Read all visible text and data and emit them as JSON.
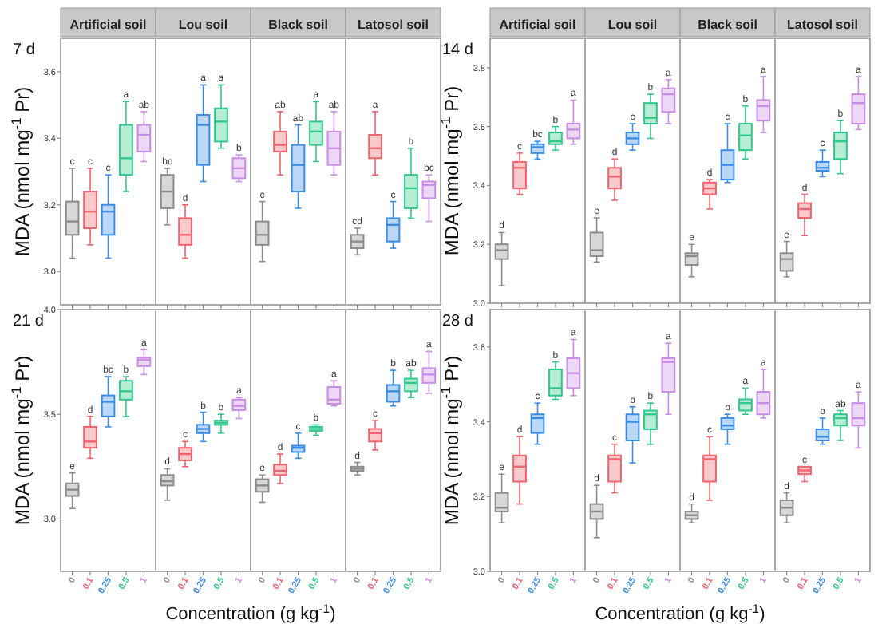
{
  "chart_data": [
    {
      "type": "box",
      "ylabel": "MDA (nmol mg$^{-1}$ Pr)",
      "categories": [
        "Artificial soil",
        "Lou soil",
        "Black soil",
        "Latosol soil"
      ],
      "ylim": [
        2.9,
        3.7
      ],
      "yticks": [
        {
          "value": 3.0,
          "label": "3.0"
        },
        {
          "value": 3.2,
          "label": "3.2"
        },
        {
          "value": 3.4,
          "label": "3.4"
        },
        {
          "value": 3.6,
          "label": "3.6"
        }
      ],
      "series": [
        {
          "color": "#8c8c8c",
          "boxes": [
            {
              "low": 3.04,
              "q1": 3.11,
              "median": 3.15,
              "q3": 3.21,
              "high": 3.31
            },
            {
              "low": 3.14,
              "q1": 3.19,
              "median": 3.24,
              "q3": 3.29,
              "high": 3.31
            },
            {
              "low": 3.03,
              "q1": 3.08,
              "median": 3.11,
              "q3": 3.15,
              "high": 3.21
            },
            {
              "low": 3.05,
              "q1": 3.07,
              "median": 3.09,
              "q3": 3.11,
              "high": 3.13
            }
          ]
        },
        {
          "color": "#f0646e",
          "boxes": [
            {
              "low": 3.08,
              "q1": 3.13,
              "median": 3.18,
              "q3": 3.24,
              "high": 3.31
            },
            {
              "low": 3.04,
              "q1": 3.08,
              "median": 3.11,
              "q3": 3.16,
              "high": 3.2
            },
            {
              "low": 3.29,
              "q1": 3.36,
              "median": 3.38,
              "q3": 3.42,
              "high": 3.48
            },
            {
              "low": 3.29,
              "q1": 3.34,
              "median": 3.37,
              "q3": 3.41,
              "high": 3.48
            }
          ]
        },
        {
          "color": "#3c8ce6",
          "boxes": [
            {
              "low": 3.04,
              "q1": 3.11,
              "median": 3.18,
              "q3": 3.2,
              "high": 3.29
            },
            {
              "low": 3.27,
              "q1": 3.32,
              "median": 3.44,
              "q3": 3.47,
              "high": 3.56
            },
            {
              "low": 3.19,
              "q1": 3.24,
              "median": 3.32,
              "q3": 3.38,
              "high": 3.44
            },
            {
              "low": 3.07,
              "q1": 3.09,
              "median": 3.14,
              "q3": 3.16,
              "high": 3.21
            }
          ]
        },
        {
          "color": "#32c88c",
          "boxes": [
            {
              "low": 3.24,
              "q1": 3.29,
              "median": 3.34,
              "q3": 3.44,
              "high": 3.51
            },
            {
              "low": 3.37,
              "q1": 3.39,
              "median": 3.45,
              "q3": 3.49,
              "high": 3.56
            },
            {
              "low": 3.33,
              "q1": 3.38,
              "median": 3.42,
              "q3": 3.45,
              "high": 3.51
            },
            {
              "low": 3.16,
              "q1": 3.19,
              "median": 3.25,
              "q3": 3.29,
              "high": 3.37
            }
          ]
        },
        {
          "color": "#c88ce6",
          "boxes": [
            {
              "low": 3.33,
              "q1": 3.36,
              "median": 3.41,
              "q3": 3.44,
              "high": 3.48
            },
            {
              "low": 3.27,
              "q1": 3.28,
              "median": 3.31,
              "q3": 3.34,
              "high": 3.35
            },
            {
              "low": 3.29,
              "q1": 3.32,
              "median": 3.37,
              "q3": 3.42,
              "high": 3.48
            },
            {
              "low": 3.15,
              "q1": 3.22,
              "median": 3.26,
              "q3": 3.27,
              "high": 3.29
            }
          ]
        }
      ],
      "annotations": [
        "7 d",
        "c",
        "c",
        "c",
        "a",
        "ab",
        "bc",
        "d",
        "a",
        "a",
        "b",
        "c",
        "ab",
        "ab",
        "a",
        "ab",
        "cd",
        "a",
        "c",
        "b",
        "bc"
      ]
    },
    {
      "type": "box",
      "ylabel": "MDA (nmol mg$^{-1}$ Pr)",
      "categories": [
        "Artificial soil",
        "Lou soil",
        "Black soil",
        "Latosol soil"
      ],
      "ylim": [
        3.0,
        3.9
      ],
      "yticks": [
        {
          "value": 3.0,
          "label": "3.0"
        },
        {
          "value": 3.2,
          "label": "3.2"
        },
        {
          "value": 3.4,
          "label": "3.4"
        },
        {
          "value": 3.6,
          "label": "3.6"
        },
        {
          "value": 3.8,
          "label": "3.8"
        }
      ],
      "series": [
        {
          "color": "#8c8c8c",
          "boxes": [
            {
              "low": 3.06,
              "q1": 3.15,
              "median": 3.18,
              "q3": 3.2,
              "high": 3.24
            },
            {
              "low": 3.14,
              "q1": 3.16,
              "median": 3.18,
              "q3": 3.24,
              "high": 3.29
            },
            {
              "low": 3.09,
              "q1": 3.13,
              "median": 3.16,
              "q3": 3.17,
              "high": 3.2
            },
            {
              "low": 3.09,
              "q1": 3.11,
              "median": 3.15,
              "q3": 3.17,
              "high": 3.21
            }
          ]
        },
        {
          "color": "#f0646e",
          "boxes": [
            {
              "low": 3.37,
              "q1": 3.39,
              "median": 3.46,
              "q3": 3.48,
              "high": 3.51
            },
            {
              "low": 3.35,
              "q1": 3.39,
              "median": 3.43,
              "q3": 3.46,
              "high": 3.49
            },
            {
              "low": 3.32,
              "q1": 3.37,
              "median": 3.39,
              "q3": 3.41,
              "high": 3.42
            },
            {
              "low": 3.23,
              "q1": 3.29,
              "median": 3.32,
              "q3": 3.34,
              "high": 3.37
            }
          ]
        },
        {
          "color": "#3c8ce6",
          "boxes": [
            {
              "low": 3.49,
              "q1": 3.51,
              "median": 3.53,
              "q3": 3.54,
              "high": 3.55
            },
            {
              "low": 3.52,
              "q1": 3.54,
              "median": 3.56,
              "q3": 3.58,
              "high": 3.61
            },
            {
              "low": 3.41,
              "q1": 3.42,
              "median": 3.47,
              "q3": 3.52,
              "high": 3.61
            },
            {
              "low": 3.43,
              "q1": 3.45,
              "median": 3.46,
              "q3": 3.48,
              "high": 3.52
            }
          ]
        },
        {
          "color": "#32c88c",
          "boxes": [
            {
              "low": 3.52,
              "q1": 3.54,
              "median": 3.55,
              "q3": 3.58,
              "high": 3.6
            },
            {
              "low": 3.56,
              "q1": 3.61,
              "median": 3.63,
              "q3": 3.68,
              "high": 3.71
            },
            {
              "low": 3.49,
              "q1": 3.52,
              "median": 3.57,
              "q3": 3.61,
              "high": 3.67
            },
            {
              "low": 3.44,
              "q1": 3.49,
              "median": 3.55,
              "q3": 3.58,
              "high": 3.62
            }
          ]
        },
        {
          "color": "#c88ce6",
          "boxes": [
            {
              "low": 3.54,
              "q1": 3.56,
              "median": 3.59,
              "q3": 3.61,
              "high": 3.69
            },
            {
              "low": 3.61,
              "q1": 3.65,
              "median": 3.71,
              "q3": 3.73,
              "high": 3.76
            },
            {
              "low": 3.58,
              "q1": 3.62,
              "median": 3.67,
              "q3": 3.69,
              "high": 3.77
            },
            {
              "low": 3.59,
              "q1": 3.61,
              "median": 3.68,
              "q3": 3.71,
              "high": 3.77
            }
          ]
        }
      ],
      "annotations": [
        "14 d",
        "d",
        "c",
        "bc",
        "b",
        "a",
        "e",
        "d",
        "c",
        "b",
        "a",
        "e",
        "d",
        "c",
        "b",
        "a",
        "e",
        "d",
        "c",
        "b",
        "a"
      ]
    },
    {
      "type": "box",
      "ylabel": "MDA (nmol mg$^{-1}$ Pr)",
      "xlabel": "Concentration (g kg$^{-1}$)",
      "categories": [
        null,
        null,
        null,
        null
      ],
      "ylim": [
        2.75,
        4.0
      ],
      "yticks": [
        {
          "value": 3.0,
          "label": "3.0"
        },
        {
          "value": 3.5,
          "label": "3.5"
        },
        {
          "value": 4.0,
          "label": "4.0"
        }
      ],
      "series": [
        {
          "name": "0",
          "color": "#8c8c8c",
          "boxes": [
            {
              "low": 3.05,
              "q1": 3.11,
              "median": 3.14,
              "q3": 3.17,
              "high": 3.22
            },
            {
              "low": 3.09,
              "q1": 3.16,
              "median": 3.18,
              "q3": 3.21,
              "high": 3.24
            },
            {
              "low": 3.08,
              "q1": 3.13,
              "median": 3.16,
              "q3": 3.19,
              "high": 3.21
            },
            {
              "low": 3.21,
              "q1": 3.23,
              "median": 3.24,
              "q3": 3.25,
              "high": 3.27
            }
          ]
        },
        {
          "name": "0.1",
          "color": "#f0646e",
          "boxes": [
            {
              "low": 3.29,
              "q1": 3.34,
              "median": 3.37,
              "q3": 3.44,
              "high": 3.49
            },
            {
              "low": 3.25,
              "q1": 3.28,
              "median": 3.31,
              "q3": 3.34,
              "high": 3.37
            },
            {
              "low": 3.17,
              "q1": 3.21,
              "median": 3.23,
              "q3": 3.26,
              "high": 3.31
            },
            {
              "low": 3.33,
              "q1": 3.37,
              "median": 3.41,
              "q3": 3.43,
              "high": 3.47
            }
          ]
        },
        {
          "name": "0.25",
          "color": "#3c8ce6",
          "boxes": [
            {
              "low": 3.44,
              "q1": 3.49,
              "median": 3.56,
              "q3": 3.59,
              "high": 3.68
            },
            {
              "low": 3.37,
              "q1": 3.41,
              "median": 3.43,
              "q3": 3.45,
              "high": 3.51
            },
            {
              "low": 3.29,
              "q1": 3.32,
              "median": 3.34,
              "q3": 3.35,
              "high": 3.41
            },
            {
              "low": 3.54,
              "q1": 3.56,
              "median": 3.61,
              "q3": 3.64,
              "high": 3.71
            }
          ]
        },
        {
          "name": "0.5",
          "color": "#32c88c",
          "boxes": [
            {
              "low": 3.49,
              "q1": 3.57,
              "median": 3.61,
              "q3": 3.66,
              "high": 3.68
            },
            {
              "low": 3.41,
              "q1": 3.45,
              "median": 3.46,
              "q3": 3.47,
              "high": 3.5
            },
            {
              "low": 3.4,
              "q1": 3.42,
              "median": 3.43,
              "q3": 3.44,
              "high": 3.45
            },
            {
              "low": 3.58,
              "q1": 3.61,
              "median": 3.65,
              "q3": 3.67,
              "high": 3.71
            }
          ]
        },
        {
          "name": "1",
          "color": "#c88ce6",
          "boxes": [
            {
              "low": 3.69,
              "q1": 3.73,
              "median": 3.76,
              "q3": 3.77,
              "high": 3.81
            },
            {
              "low": 3.48,
              "q1": 3.52,
              "median": 3.54,
              "q3": 3.57,
              "high": 3.58
            },
            {
              "low": 3.54,
              "q1": 3.55,
              "median": 3.57,
              "q3": 3.63,
              "high": 3.66
            },
            {
              "low": 3.6,
              "q1": 3.65,
              "median": 3.69,
              "q3": 3.72,
              "high": 3.8
            }
          ]
        }
      ],
      "annotations": [
        "21 d",
        "e",
        "d",
        "bc",
        "b",
        "a",
        "d",
        "c",
        "b",
        "b",
        "a",
        "e",
        "d",
        "c",
        "b",
        "a",
        "d",
        "c",
        "b",
        "ab",
        "a"
      ]
    },
    {
      "type": "box",
      "ylabel": "MDA (nmol mg$^{-1}$ Pr)",
      "xlabel": "Concentration (g kg$^{-1}$)",
      "categories": [
        null,
        null,
        null,
        null
      ],
      "ylim": [
        3.0,
        3.7
      ],
      "yticks": [
        {
          "value": 3.0,
          "label": "3.0"
        },
        {
          "value": 3.2,
          "label": "3.2"
        },
        {
          "value": 3.4,
          "label": "3.4"
        },
        {
          "value": 3.6,
          "label": "3.6"
        }
      ],
      "series": [
        {
          "name": "0",
          "color": "#8c8c8c",
          "boxes": [
            {
              "low": 3.13,
              "q1": 3.16,
              "median": 3.17,
              "q3": 3.21,
              "high": 3.26
            },
            {
              "low": 3.09,
              "q1": 3.14,
              "median": 3.16,
              "q3": 3.18,
              "high": 3.23
            },
            {
              "low": 3.13,
              "q1": 3.14,
              "median": 3.15,
              "q3": 3.16,
              "high": 3.18
            },
            {
              "low": 3.13,
              "q1": 3.15,
              "median": 3.17,
              "q3": 3.19,
              "high": 3.21
            }
          ]
        },
        {
          "name": "0.1",
          "color": "#f0646e",
          "boxes": [
            {
              "low": 3.18,
              "q1": 3.24,
              "median": 3.28,
              "q3": 3.31,
              "high": 3.36
            },
            {
              "low": 3.21,
              "q1": 3.24,
              "median": 3.3,
              "q3": 3.31,
              "high": 3.34
            },
            {
              "low": 3.19,
              "q1": 3.24,
              "median": 3.3,
              "q3": 3.31,
              "high": 3.36
            },
            {
              "low": 3.24,
              "q1": 3.26,
              "median": 3.27,
              "q3": 3.28,
              "high": 3.28
            }
          ]
        },
        {
          "name": "0.25",
          "color": "#3c8ce6",
          "boxes": [
            {
              "low": 3.34,
              "q1": 3.37,
              "median": 3.41,
              "q3": 3.42,
              "high": 3.45
            },
            {
              "low": 3.29,
              "q1": 3.35,
              "median": 3.4,
              "q3": 3.42,
              "high": 3.44
            },
            {
              "low": 3.34,
              "q1": 3.38,
              "median": 3.39,
              "q3": 3.41,
              "high": 3.42
            },
            {
              "low": 3.34,
              "q1": 3.35,
              "median": 3.36,
              "q3": 3.38,
              "high": 3.41
            }
          ]
        },
        {
          "name": "0.5",
          "color": "#32c88c",
          "boxes": [
            {
              "low": 3.46,
              "q1": 3.47,
              "median": 3.49,
              "q3": 3.54,
              "high": 3.56
            },
            {
              "low": 3.34,
              "q1": 3.38,
              "median": 3.42,
              "q3": 3.43,
              "high": 3.45
            },
            {
              "low": 3.42,
              "q1": 3.43,
              "median": 3.45,
              "q3": 3.46,
              "high": 3.49
            },
            {
              "low": 3.35,
              "q1": 3.39,
              "median": 3.41,
              "q3": 3.42,
              "high": 3.43
            }
          ]
        },
        {
          "name": "1",
          "color": "#c88ce6",
          "boxes": [
            {
              "low": 3.47,
              "q1": 3.49,
              "median": 3.53,
              "q3": 3.57,
              "high": 3.62
            },
            {
              "low": 3.42,
              "q1": 3.48,
              "median": 3.56,
              "q3": 3.57,
              "high": 3.61
            },
            {
              "low": 3.41,
              "q1": 3.42,
              "median": 3.45,
              "q3": 3.48,
              "high": 3.54
            },
            {
              "low": 3.33,
              "q1": 3.39,
              "median": 3.41,
              "q3": 3.45,
              "high": 3.48
            }
          ]
        }
      ],
      "annotations": [
        "28 d",
        "e",
        "d",
        "c",
        "b",
        "a",
        "d",
        "c",
        "b",
        "b",
        "a",
        "d",
        "c",
        "b",
        "a",
        "a",
        "d",
        "c",
        "b",
        "ab",
        "a"
      ]
    }
  ]
}
